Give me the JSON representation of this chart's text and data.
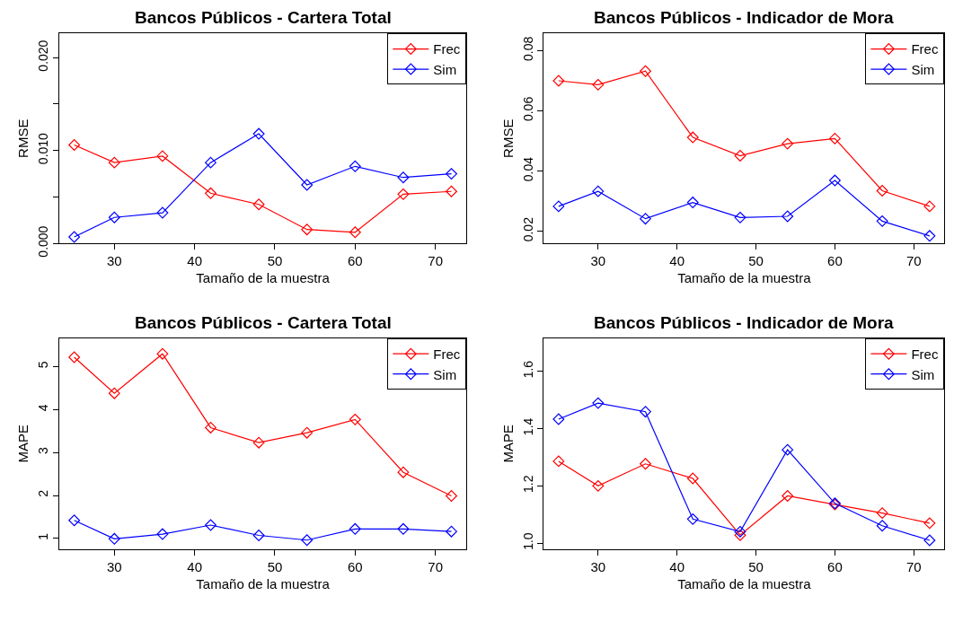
{
  "chart_data": [
    {
      "type": "line",
      "title": "Bancos Públicos - Cartera Total",
      "xlabel": "Tamaño de la muestra",
      "ylabel": "RMSE",
      "x": [
        25,
        30,
        36,
        42,
        48,
        54,
        60,
        66,
        72
      ],
      "xlim": [
        23.12,
        73.88
      ],
      "xticks": [
        30,
        40,
        50,
        60,
        70
      ],
      "ylim": [
        0,
        0.0226
      ],
      "yticks": [
        {
          "value": 0,
          "label": "0.000"
        },
        {
          "value": 0.005,
          "label": null
        },
        {
          "value": 0.01,
          "label": "0.010"
        },
        {
          "value": 0.015,
          "label": null
        },
        {
          "value": 0.02,
          "label": "0.020"
        }
      ],
      "legend": "top right",
      "marker": "diamond",
      "series": [
        {
          "name": "Frec",
          "color": "#ff0000",
          "values": [
            0.0106,
            0.0087,
            0.0094,
            0.0054,
            0.0042,
            0.0015,
            0.0012,
            0.0053,
            0.0056
          ]
        },
        {
          "name": "Sim",
          "color": "#0000ff",
          "values": [
            0.0007,
            0.0028,
            0.0033,
            0.0087,
            0.0118,
            0.0063,
            0.0083,
            0.0071,
            0.0075
          ]
        }
      ]
    },
    {
      "type": "line",
      "title": "Bancos Públicos - Indicador de Mora",
      "xlabel": "Tamaño de la muestra",
      "ylabel": "RMSE",
      "x": [
        25,
        30,
        36,
        42,
        48,
        54,
        60,
        66,
        72
      ],
      "xlim": [
        23.12,
        73.88
      ],
      "xticks": [
        30,
        40,
        50,
        60,
        70
      ],
      "ylim": [
        0.016,
        0.0857
      ],
      "yticks": [
        0.02,
        0.04,
        0.06,
        0.08
      ],
      "legend": "top right",
      "marker": "diamond",
      "series": [
        {
          "name": "Frec",
          "color": "#ff0000",
          "values": [
            0.07,
            0.0687,
            0.0732,
            0.0512,
            0.0451,
            0.0491,
            0.0508,
            0.0335,
            0.0283
          ]
        },
        {
          "name": "Sim",
          "color": "#0000ff",
          "values": [
            0.0283,
            0.0333,
            0.0242,
            0.0296,
            0.0246,
            0.025,
            0.0369,
            0.0234,
            0.0185
          ]
        }
      ]
    },
    {
      "type": "line",
      "title": "Bancos Públicos - Cartera Total",
      "xlabel": "Tamaño de la muestra",
      "ylabel": "MAPE",
      "x": [
        25,
        30,
        36,
        42,
        48,
        54,
        60,
        66,
        72
      ],
      "xlim": [
        23.12,
        73.88
      ],
      "xticks": [
        30,
        40,
        50,
        60,
        70
      ],
      "ylim": [
        0.755,
        5.66
      ],
      "yticks": [
        1,
        2,
        3,
        4,
        5
      ],
      "legend": "top right",
      "marker": "diamond",
      "series": [
        {
          "name": "Frec",
          "color": "#ff0000",
          "values": [
            5.22,
            4.38,
            5.3,
            3.58,
            3.23,
            3.46,
            3.77,
            2.54,
            1.99
          ]
        },
        {
          "name": "Sim",
          "color": "#0000ff",
          "values": [
            1.42,
            0.99,
            1.1,
            1.31,
            1.07,
            0.96,
            1.22,
            1.22,
            1.16
          ]
        }
      ]
    },
    {
      "type": "line",
      "title": "Bancos Públicos - Indicador de Mora",
      "xlabel": "Tamaño de la muestra",
      "ylabel": "MAPE",
      "x": [
        25,
        30,
        36,
        42,
        48,
        54,
        60,
        66,
        72
      ],
      "xlim": [
        23.12,
        73.88
      ],
      "xticks": [
        30,
        40,
        50,
        60,
        70
      ],
      "ylim": [
        0.98,
        1.715
      ],
      "yticks": [
        {
          "value": 1.0,
          "label": "1.0"
        },
        {
          "value": 1.2,
          "label": "1.2"
        },
        {
          "value": 1.4,
          "label": "1.4"
        },
        {
          "value": 1.6,
          "label": "1.6"
        }
      ],
      "legend": "top right",
      "marker": "diamond",
      "series": [
        {
          "name": "Frec",
          "color": "#ff0000",
          "values": [
            1.286,
            1.2,
            1.277,
            1.226,
            1.028,
            1.165,
            1.135,
            1.105,
            1.07
          ]
        },
        {
          "name": "Sim",
          "color": "#0000ff",
          "values": [
            1.433,
            1.489,
            1.459,
            1.084,
            1.04,
            1.326,
            1.139,
            1.061,
            1.01
          ]
        }
      ]
    }
  ]
}
